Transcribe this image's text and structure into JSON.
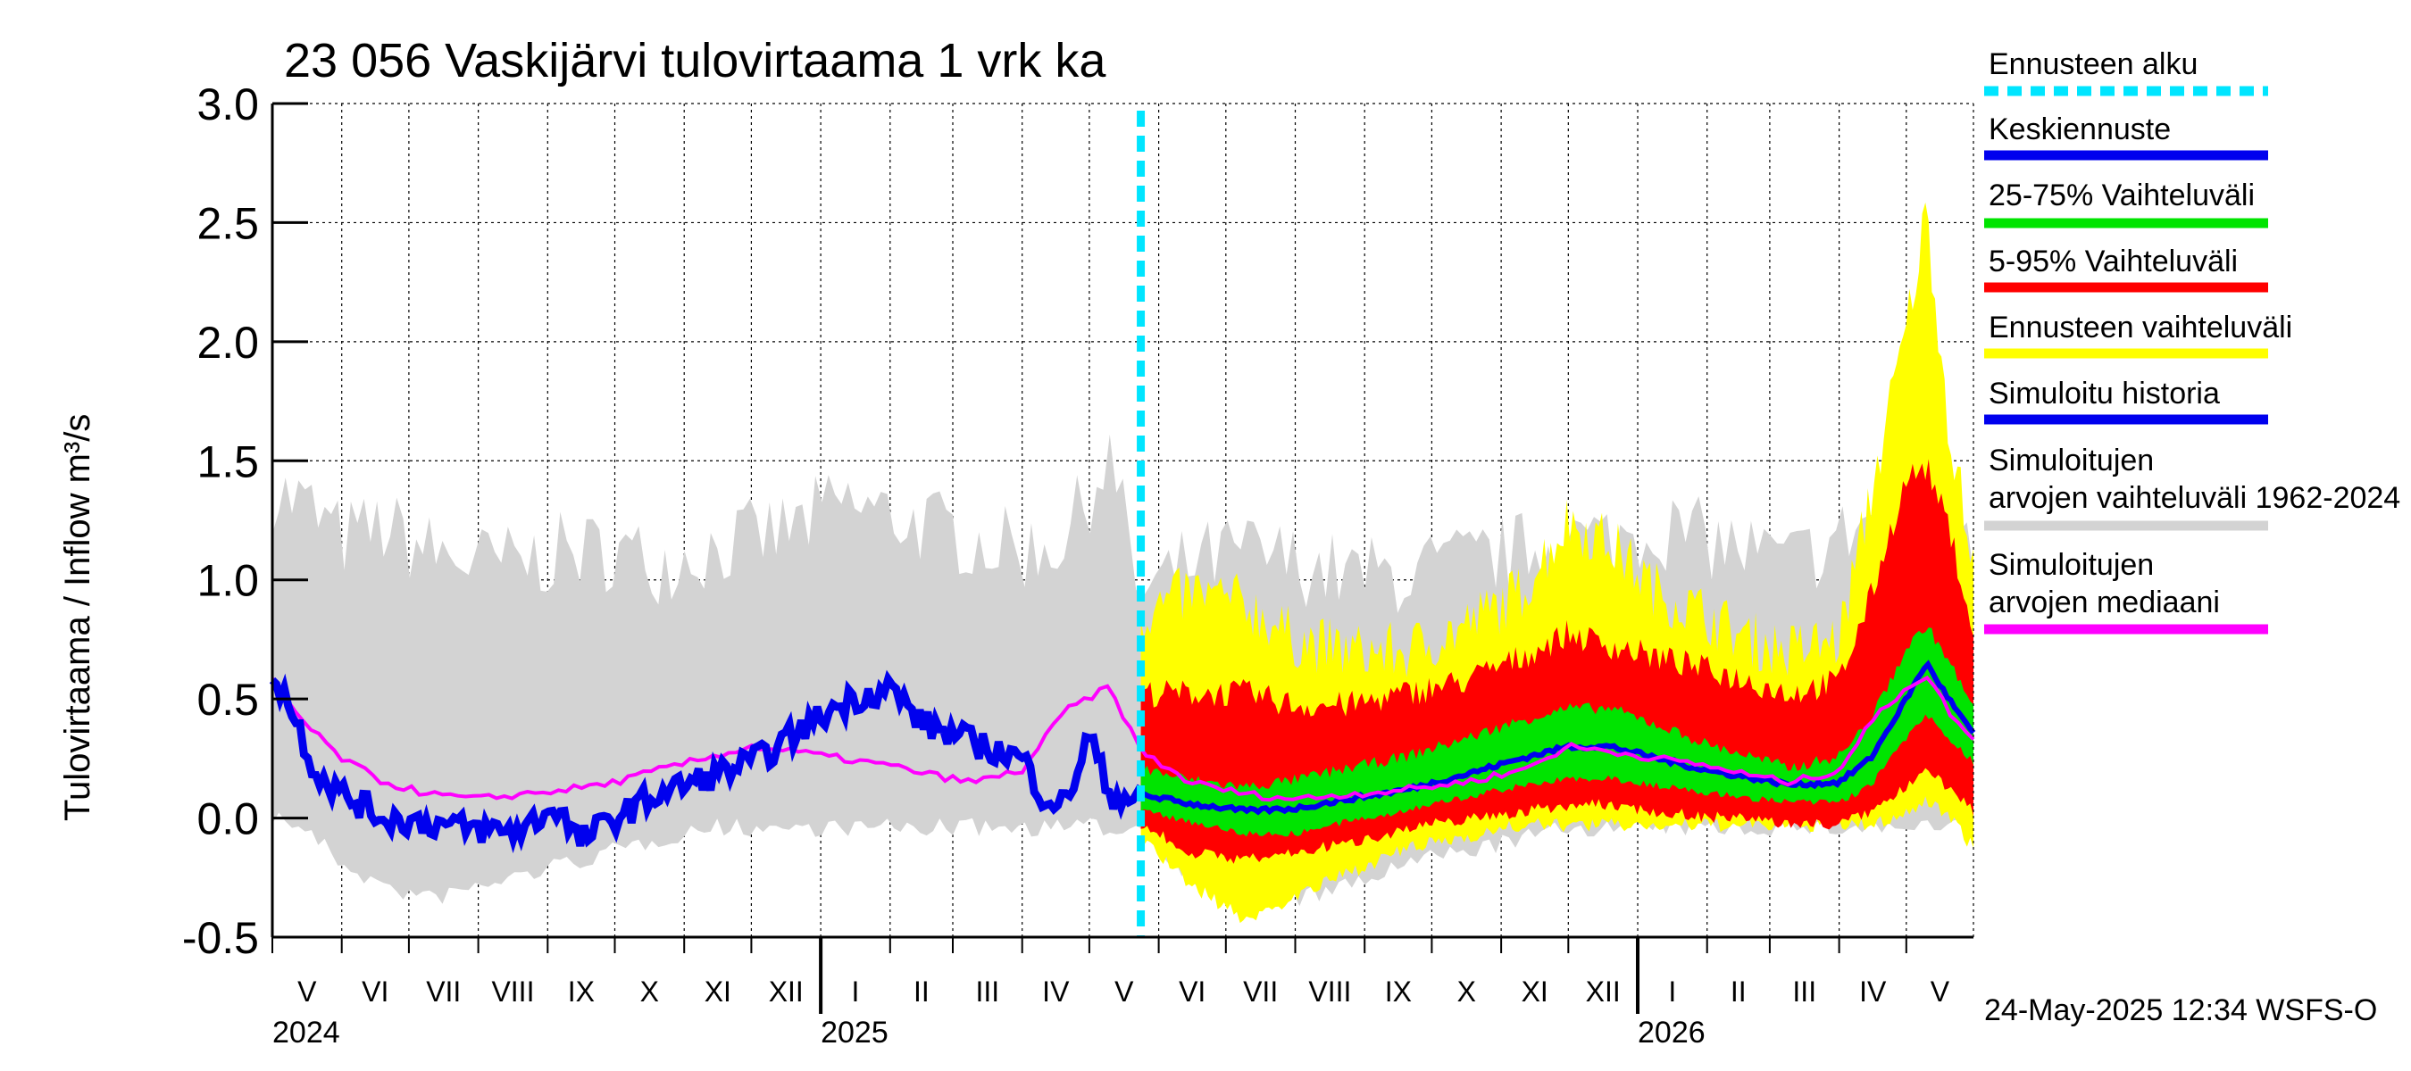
{
  "chart_data": {
    "type": "area",
    "title": "23 056 Vaskijärvi tulovirtaama 1 vrk ka",
    "ylabel": "Tulovirtaama / Inflow    m³/s",
    "ylim": [
      -0.5,
      3.0
    ],
    "yticks": [
      "-0.5",
      "0.0",
      "0.5",
      "1.0",
      "1.5",
      "2.0",
      "2.5",
      "3.0"
    ],
    "x_range": [
      "2024-05-01",
      "2026-05-31"
    ],
    "forecast_start": "2025-05-24",
    "months": [
      "V",
      "VI",
      "VII",
      "VIII",
      "IX",
      "X",
      "XI",
      "XII",
      "I",
      "II",
      "III",
      "IV",
      "V",
      "VI",
      "VII",
      "VIII",
      "IX",
      "X",
      "XI",
      "XII",
      "I",
      "II",
      "III",
      "IV",
      "V"
    ],
    "years": [
      "2024",
      "2025",
      "2026"
    ],
    "grid": true,
    "legend_position": "right",
    "footer": "24-May-2025 12:34 WSFS-O",
    "legend": [
      {
        "label": "Ennusteen alku",
        "color": "#00e5ff",
        "style": "dashed"
      },
      {
        "label": "Keskiennuste",
        "color": "#0000ee"
      },
      {
        "label": "25-75% Vaihteluväli",
        "color": "#00e400"
      },
      {
        "label": "5-95% Vaihteluväli",
        "color": "#ff0000"
      },
      {
        "label": "Ennusteen vaihteluväli",
        "color": "#ffff00"
      },
      {
        "label": "Simuloitu historia",
        "color": "#0000ee"
      },
      {
        "label": "Simuloitujen arvojen vaihteluväli 1962-2024",
        "color": "#d3d3d3"
      },
      {
        "label": "Simuloitujen arvojen mediaani",
        "color": "#ff00ff"
      }
    ],
    "series": {
      "history_range": {
        "x": [
          "2024-05-01",
          "2024-05-15",
          "2024-06-01",
          "2024-06-20",
          "2024-07-10",
          "2024-08-01",
          "2024-08-20",
          "2024-09-10",
          "2024-10-01",
          "2024-10-20",
          "2024-11-10",
          "2024-12-01",
          "2024-12-20",
          "2025-01-10",
          "2025-02-01",
          "2025-02-20",
          "2025-03-10",
          "2025-04-01",
          "2025-04-20",
          "2025-05-10",
          "2025-05-24",
          "2025-06-15",
          "2025-07-10",
          "2025-08-01",
          "2025-08-25",
          "2025-09-20",
          "2025-10-15",
          "2025-11-10",
          "2025-12-01",
          "2025-12-20",
          "2026-01-10",
          "2026-02-01",
          "2026-02-20",
          "2026-03-10",
          "2026-04-01",
          "2026-04-15",
          "2026-05-01",
          "2026-05-10",
          "2026-05-20",
          "2026-05-31"
        ],
        "low": [
          0.05,
          0.0,
          -0.15,
          -0.25,
          -0.3,
          -0.25,
          -0.2,
          -0.15,
          -0.1,
          -0.05,
          0.0,
          0.0,
          0.0,
          0.0,
          0.0,
          0.0,
          0.0,
          0.0,
          0.0,
          0.0,
          0.0,
          -0.2,
          -0.3,
          -0.3,
          -0.25,
          -0.15,
          -0.1,
          -0.05,
          0.0,
          0.0,
          0.0,
          0.0,
          0.0,
          0.0,
          0.0,
          0.0,
          0.0,
          0.0,
          0.0,
          0.0
        ],
        "high": [
          1.3,
          1.25,
          1.1,
          1.15,
          1.05,
          1.0,
          1.0,
          1.05,
          1.05,
          1.0,
          1.05,
          1.1,
          1.15,
          1.25,
          1.2,
          1.15,
          1.1,
          1.05,
          1.1,
          1.45,
          0.85,
          1.0,
          1.05,
          1.0,
          0.95,
          0.95,
          1.0,
          1.05,
          1.1,
          1.1,
          1.15,
          1.1,
          1.05,
          1.0,
          1.1,
          1.2,
          1.25,
          1.7,
          1.4,
          1.1
        ]
      },
      "history_median": {
        "x": [
          "2024-05-01",
          "2024-05-15",
          "2024-06-01",
          "2024-06-20",
          "2024-07-10",
          "2024-08-01",
          "2024-08-20",
          "2024-09-10",
          "2024-10-01",
          "2024-10-20",
          "2024-11-10",
          "2024-12-01",
          "2024-12-20",
          "2025-01-10",
          "2025-02-01",
          "2025-02-20",
          "2025-03-10",
          "2025-04-01",
          "2025-04-20",
          "2025-05-10",
          "2025-05-24",
          "2025-06-15",
          "2025-07-10",
          "2025-08-01",
          "2025-08-25",
          "2025-09-20",
          "2025-10-15",
          "2025-11-10",
          "2025-12-01",
          "2025-12-20",
          "2026-01-10",
          "2026-02-01",
          "2026-02-20",
          "2026-03-10",
          "2026-04-01",
          "2026-04-15",
          "2026-05-01",
          "2026-05-10",
          "2026-05-20",
          "2026-05-31"
        ],
        "values": [
          0.58,
          0.4,
          0.25,
          0.15,
          0.1,
          0.08,
          0.1,
          0.12,
          0.15,
          0.2,
          0.25,
          0.3,
          0.28,
          0.25,
          0.22,
          0.18,
          0.15,
          0.2,
          0.45,
          0.55,
          0.28,
          0.15,
          0.1,
          0.08,
          0.1,
          0.12,
          0.15,
          0.2,
          0.3,
          0.28,
          0.25,
          0.22,
          0.18,
          0.15,
          0.2,
          0.4,
          0.55,
          0.6,
          0.45,
          0.32
        ]
      },
      "simulated_history": {
        "x": [
          "2024-05-01",
          "2024-05-10",
          "2024-05-20",
          "2024-06-01",
          "2024-06-20",
          "2024-07-10",
          "2024-08-01",
          "2024-08-20",
          "2024-09-05",
          "2024-09-15",
          "2024-10-01",
          "2024-10-20",
          "2024-11-05",
          "2024-11-20",
          "2024-12-05",
          "2024-12-20",
          "2025-01-05",
          "2025-01-15",
          "2025-02-01",
          "2025-02-15",
          "2025-03-01",
          "2025-03-15",
          "2025-04-01",
          "2025-04-10",
          "2025-04-20",
          "2025-05-01",
          "2025-05-10",
          "2025-05-24"
        ],
        "values": [
          0.62,
          0.45,
          0.2,
          0.1,
          0.0,
          -0.02,
          -0.05,
          -0.05,
          0.05,
          -0.1,
          0.0,
          0.1,
          0.15,
          0.2,
          0.25,
          0.35,
          0.45,
          0.5,
          0.55,
          0.4,
          0.35,
          0.3,
          0.25,
          0.1,
          0.05,
          0.35,
          0.1,
          0.08
        ]
      },
      "forecast_median": {
        "x": [
          "2025-05-24",
          "2025-06-15",
          "2025-07-10",
          "2025-08-01",
          "2025-08-25",
          "2025-09-20",
          "2025-10-15",
          "2025-11-10",
          "2025-12-01",
          "2025-12-20",
          "2026-01-10",
          "2026-02-01",
          "2026-02-20",
          "2026-03-10",
          "2026-04-01",
          "2026-04-15",
          "2026-05-01",
          "2026-05-10",
          "2026-05-20",
          "2026-05-31"
        ],
        "values": [
          0.1,
          0.06,
          0.03,
          0.04,
          0.08,
          0.12,
          0.18,
          0.25,
          0.3,
          0.3,
          0.25,
          0.2,
          0.17,
          0.14,
          0.15,
          0.25,
          0.5,
          0.65,
          0.5,
          0.35
        ]
      },
      "forecast_25_75": {
        "x": [
          "2025-05-24",
          "2025-06-15",
          "2025-07-10",
          "2025-08-01",
          "2025-08-25",
          "2025-09-20",
          "2025-10-15",
          "2025-11-10",
          "2025-12-01",
          "2025-12-20",
          "2026-01-10",
          "2026-02-01",
          "2026-02-20",
          "2026-03-10",
          "2026-04-01",
          "2026-04-15",
          "2026-05-01",
          "2026-05-10",
          "2026-05-20",
          "2026-05-31"
        ],
        "low": [
          0.05,
          0.0,
          -0.05,
          -0.05,
          0.0,
          0.05,
          0.1,
          0.15,
          0.18,
          0.18,
          0.15,
          0.12,
          0.1,
          0.08,
          0.08,
          0.15,
          0.35,
          0.45,
          0.35,
          0.25
        ],
        "high": [
          0.2,
          0.15,
          0.12,
          0.15,
          0.2,
          0.25,
          0.32,
          0.4,
          0.45,
          0.45,
          0.38,
          0.3,
          0.25,
          0.2,
          0.25,
          0.4,
          0.7,
          0.8,
          0.65,
          0.45
        ]
      },
      "forecast_5_95": {
        "x": [
          "2025-05-24",
          "2025-06-15",
          "2025-07-10",
          "2025-08-01",
          "2025-08-25",
          "2025-09-20",
          "2025-10-15",
          "2025-11-10",
          "2025-12-01",
          "2025-12-20",
          "2026-01-10",
          "2026-02-01",
          "2026-02-20",
          "2026-03-10",
          "2026-04-01",
          "2026-04-15",
          "2026-05-01",
          "2026-05-10",
          "2026-05-20",
          "2026-05-31"
        ],
        "low": [
          0.0,
          -0.12,
          -0.15,
          -0.12,
          -0.08,
          -0.02,
          0.02,
          0.05,
          0.08,
          0.08,
          0.05,
          0.03,
          0.02,
          0.0,
          0.0,
          0.05,
          0.15,
          0.25,
          0.15,
          0.05
        ],
        "high": [
          0.5,
          0.5,
          0.5,
          0.45,
          0.45,
          0.5,
          0.55,
          0.65,
          0.75,
          0.7,
          0.65,
          0.6,
          0.55,
          0.5,
          0.55,
          0.9,
          1.4,
          1.45,
          1.2,
          0.75
        ]
      },
      "forecast_range": {
        "x": [
          "2025-05-24",
          "2025-06-15",
          "2025-07-10",
          "2025-08-01",
          "2025-08-25",
          "2025-09-20",
          "2025-10-15",
          "2025-11-10",
          "2025-12-01",
          "2025-12-20",
          "2026-01-10",
          "2026-02-01",
          "2026-02-20",
          "2026-03-10",
          "2026-04-01",
          "2026-04-15",
          "2026-05-01",
          "2026-05-10",
          "2026-05-20",
          "2026-05-31"
        ],
        "low": [
          -0.05,
          -0.25,
          -0.4,
          -0.3,
          -0.2,
          -0.1,
          -0.05,
          0.0,
          0.0,
          0.0,
          0.0,
          0.0,
          0.0,
          0.0,
          0.0,
          0.0,
          0.05,
          0.1,
          0.05,
          -0.1
        ],
        "high": [
          0.8,
          0.9,
          0.85,
          0.7,
          0.65,
          0.65,
          0.75,
          0.9,
          1.2,
          1.1,
          0.9,
          0.8,
          0.7,
          0.65,
          0.7,
          1.3,
          2.0,
          2.5,
          1.6,
          1.0
        ]
      }
    }
  }
}
